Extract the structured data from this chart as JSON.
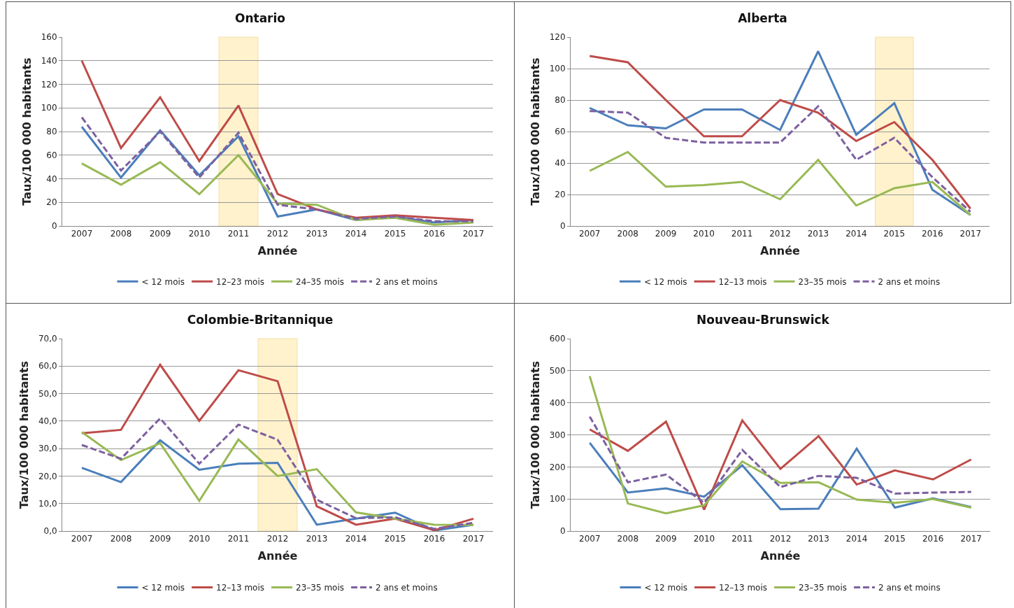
{
  "chart_data": [
    {
      "type": "line",
      "title": "Ontario",
      "xlabel": "Année",
      "ylabel": "Taux/100 000 habitants",
      "categories": [
        "2007",
        "2008",
        "2009",
        "2010",
        "2011",
        "2012",
        "2013",
        "2014",
        "2015",
        "2016",
        "2017"
      ],
      "ylim": [
        0,
        160
      ],
      "yticks": [
        0,
        20,
        40,
        60,
        80,
        100,
        120,
        140,
        160
      ],
      "grid": "y",
      "legend": "bottom",
      "bands": [
        {
          "axis": "x",
          "from": "2011",
          "to": "2011",
          "color": "#fff2cc"
        }
      ],
      "series": [
        {
          "name": "< 12 mois",
          "color": "#4a7ebb",
          "values": [
            84,
            41,
            81,
            43,
            76,
            8,
            14,
            5,
            8,
            3,
            5
          ]
        },
        {
          "name": "12–23 mois",
          "color": "#be4b48",
          "values": [
            140,
            66,
            109,
            55,
            102,
            27,
            14,
            7,
            9,
            7,
            5
          ]
        },
        {
          "name": "24–35 mois",
          "color": "#98b954",
          "values": [
            53,
            35,
            54,
            27,
            60,
            19,
            18,
            5,
            7,
            1,
            3
          ]
        },
        {
          "name": "2 ans et moins",
          "color": "#7d60a0",
          "line_style": "dashed",
          "values": [
            92,
            47,
            80,
            41,
            79,
            18,
            14,
            6,
            8,
            4,
            4
          ]
        }
      ]
    },
    {
      "type": "line",
      "title": "Alberta",
      "xlabel": "Année",
      "ylabel": "Taux/100 000 habitants",
      "categories": [
        "2007",
        "2008",
        "2009",
        "2010",
        "2011",
        "2012",
        "2013",
        "2014",
        "2015",
        "2016",
        "2017"
      ],
      "ylim": [
        0,
        120
      ],
      "yticks": [
        0,
        20,
        40,
        60,
        80,
        100,
        120
      ],
      "grid": "y",
      "legend": "bottom",
      "bands": [
        {
          "axis": "x",
          "from": "2015",
          "to": "2015",
          "color": "#fff2cc"
        }
      ],
      "series": [
        {
          "name": "< 12 mois",
          "color": "#4a7ebb",
          "values": [
            75,
            64,
            62,
            74,
            74,
            61,
            111,
            58,
            78,
            23,
            7
          ]
        },
        {
          "name": "12–13 mois",
          "color": "#be4b48",
          "values": [
            108,
            104,
            80,
            57,
            57,
            80,
            72,
            54,
            66,
            42,
            11
          ]
        },
        {
          "name": "23–35 mois",
          "color": "#98b954",
          "values": [
            35,
            47,
            25,
            26,
            28,
            17,
            42,
            13,
            24,
            28,
            7
          ]
        },
        {
          "name": "2 ans et moins",
          "color": "#7d60a0",
          "line_style": "dashed",
          "values": [
            73,
            72,
            56,
            53,
            53,
            53,
            76,
            42,
            56,
            31,
            9
          ]
        }
      ]
    },
    {
      "type": "line",
      "title": "Colombie-Britannique",
      "xlabel": "Année",
      "ylabel": "Taux/100 000 habitants",
      "categories": [
        "2007",
        "2008",
        "2009",
        "2010",
        "2011",
        "2012",
        "2013",
        "2014",
        "2015",
        "2016",
        "2017"
      ],
      "ylim": [
        0,
        70
      ],
      "yticks": [
        {
          "value": 0,
          "label": "0,0"
        },
        {
          "value": 10,
          "label": "10,0"
        },
        {
          "value": 20,
          "label": "20,0"
        },
        {
          "value": 30,
          "label": "30,0"
        },
        {
          "value": 40,
          "label": "40,0"
        },
        {
          "value": 50,
          "label": "50,0"
        },
        {
          "value": 60,
          "label": "60,0"
        },
        {
          "value": 70,
          "label": "70,0"
        }
      ],
      "grid": "y",
      "legend": "bottom",
      "bands": [
        {
          "axis": "x",
          "from": "2012",
          "to": "2012",
          "color": "#fff2cc"
        }
      ],
      "series": [
        {
          "name": "< 12 mois",
          "color": "#4a7ebb",
          "values": [
            23,
            17.8,
            33,
            22.3,
            24.5,
            24.8,
            2.3,
            4.5,
            6.7,
            0.2,
            2.3
          ]
        },
        {
          "name": "12–13 mois",
          "color": "#be4b48",
          "values": [
            35.6,
            36.8,
            60.5,
            40.1,
            58.5,
            54.5,
            9,
            2.3,
            4.5,
            0.3,
            4.5
          ]
        },
        {
          "name": "23–35 mois",
          "color": "#98b954",
          "values": [
            36,
            25.8,
            32,
            11,
            33.3,
            20,
            22.5,
            6.8,
            4.5,
            2.3,
            2.2
          ]
        },
        {
          "name": "2 ans et moins",
          "color": "#7d60a0",
          "line_style": "dashed",
          "values": [
            31.3,
            26.3,
            41,
            24.5,
            38.7,
            33.2,
            11.4,
            4.7,
            5,
            0.8,
            3
          ]
        }
      ]
    },
    {
      "type": "line",
      "title": "Nouveau-Brunswick",
      "xlabel": "Année",
      "ylabel": "Taux/100 000 habitants",
      "categories": [
        "2007",
        "2008",
        "2009",
        "2010",
        "2011",
        "2012",
        "2013",
        "2014",
        "2015",
        "2016",
        "2017"
      ],
      "ylim": [
        0,
        600
      ],
      "yticks": [
        0,
        100,
        200,
        300,
        400,
        500,
        600
      ],
      "grid": "y",
      "legend": "bottom",
      "series": [
        {
          "name": "< 12 mois",
          "color": "#4a7ebb",
          "values": [
            275,
            120,
            133,
            107,
            205,
            68,
            70,
            257,
            73,
            102,
            75
          ]
        },
        {
          "name": "12–13 mois",
          "color": "#be4b48",
          "values": [
            317,
            250,
            341,
            67,
            345,
            194,
            296,
            145,
            189,
            161,
            223
          ]
        },
        {
          "name": "23–35 mois",
          "color": "#98b954",
          "values": [
            483,
            86,
            55,
            80,
            217,
            150,
            152,
            98,
            88,
            100,
            73
          ]
        },
        {
          "name": "2 ans et moins",
          "color": "#7d60a0",
          "line_style": "dashed",
          "values": [
            357,
            152,
            176,
            88,
            253,
            137,
            172,
            166,
            117,
            120,
            122
          ]
        }
      ]
    }
  ]
}
